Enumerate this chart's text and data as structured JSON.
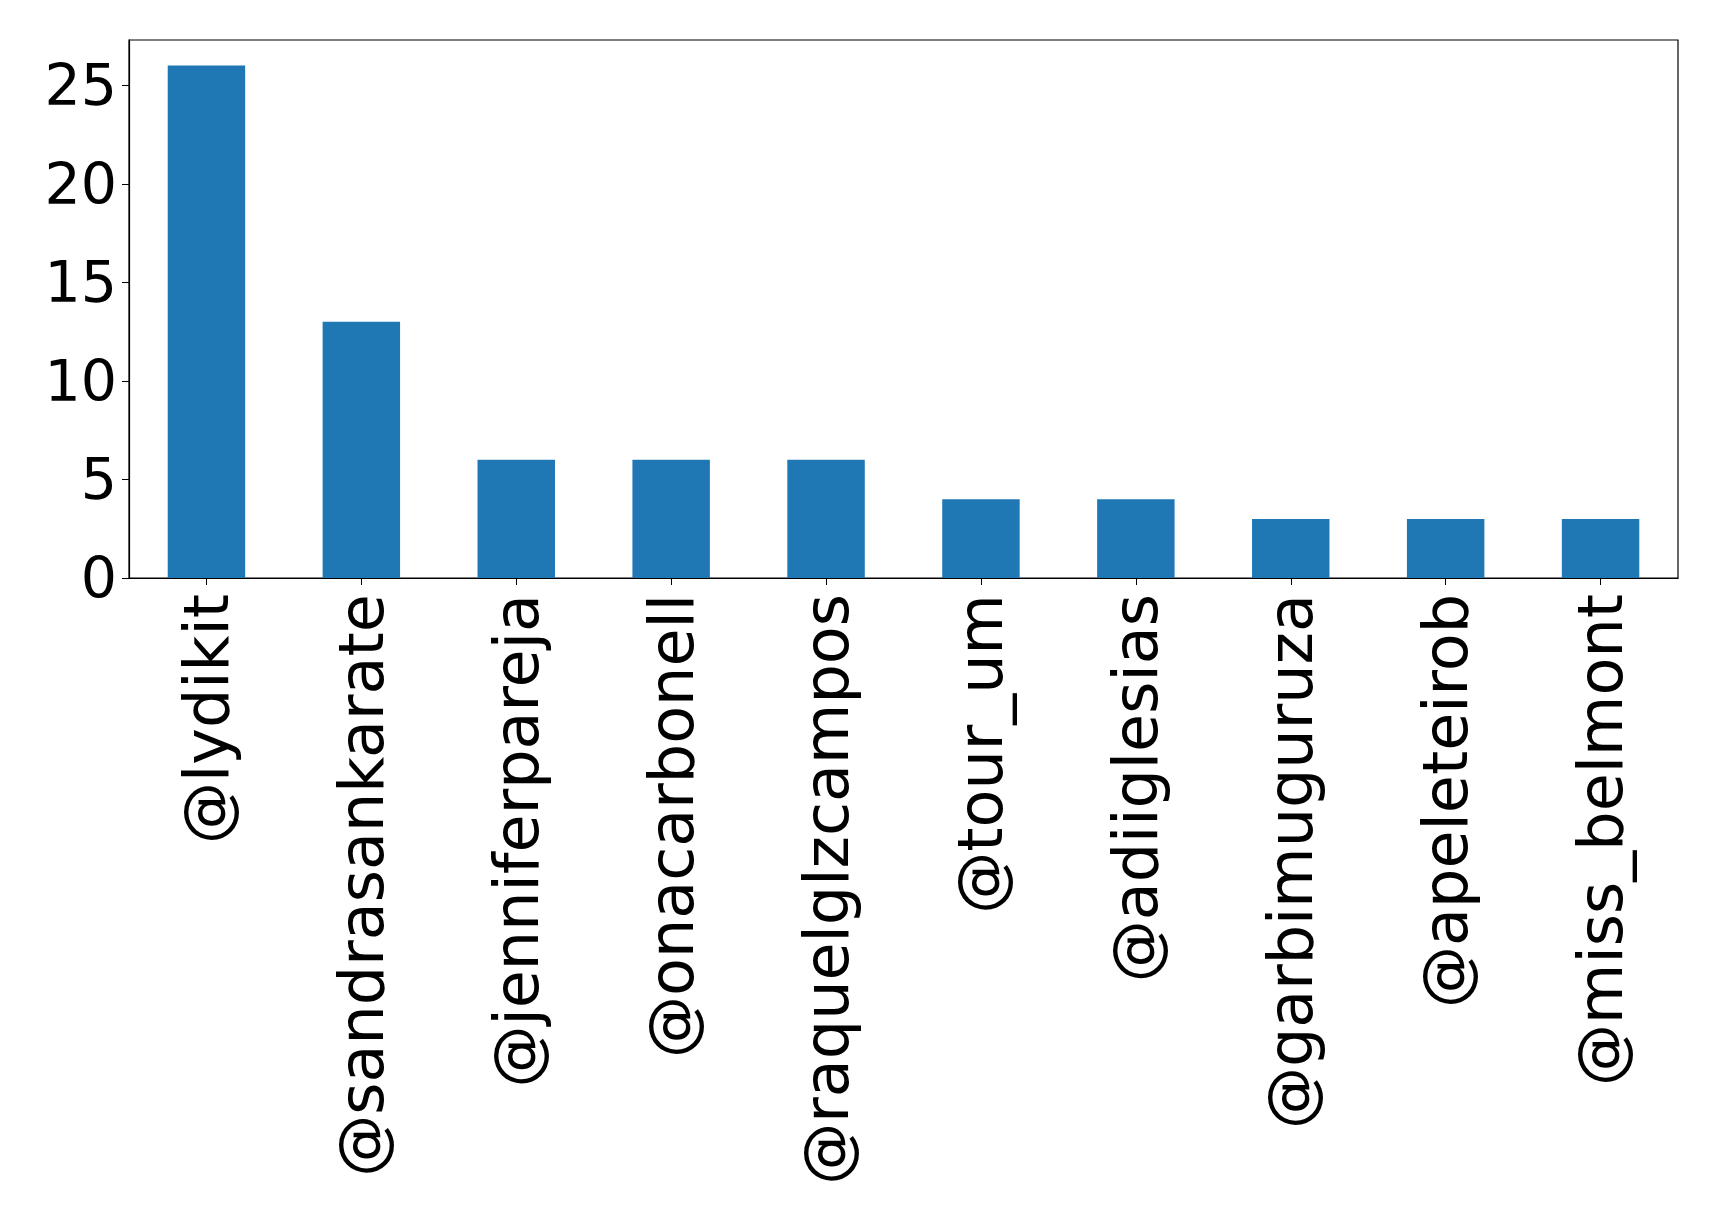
{
  "chart_data": {
    "type": "bar",
    "categories": [
      "@lydikit",
      "@sandrasankarate",
      "@jenniferpareja",
      "@onacarbonell",
      "@raquelglzcampos",
      "@tour_um",
      "@adiiglesias",
      "@garbimuguruza",
      "@apeleteirob",
      "@miss_belmont"
    ],
    "values": [
      26,
      13,
      6,
      6,
      6,
      4,
      4,
      3,
      3,
      3
    ],
    "color": "#1f77b4",
    "ylim": [
      0,
      27.3
    ],
    "yticks": [
      0,
      5,
      10,
      15,
      20,
      25
    ]
  }
}
